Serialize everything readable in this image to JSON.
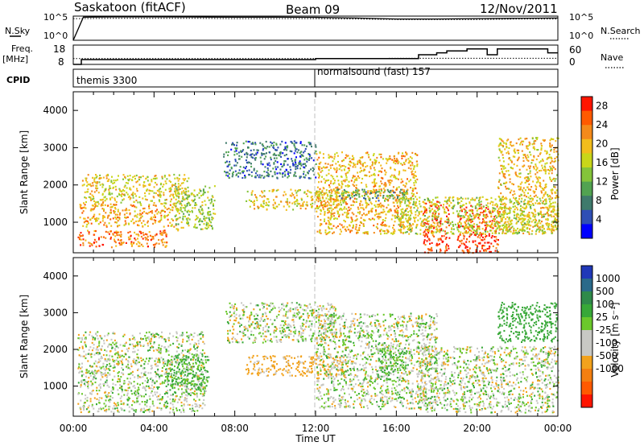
{
  "header": {
    "title": "Saskatoon (fitACF)",
    "beam": "Beam 09",
    "date": "12/Nov/2011"
  },
  "strip_labels": {
    "nsky": "N.Sky",
    "nsearch": "N.Search",
    "freq": "Freq.",
    "mhz": "[MHz]",
    "nave": "Nave",
    "cpid": "CPID",
    "nsky_ticks": [
      "10^5",
      "10^0"
    ],
    "freq_ticks": [
      "18",
      "8"
    ],
    "nave_ticks": [
      "60",
      "0"
    ]
  },
  "cpid": {
    "first": "themis 3300",
    "second": "normalsound (fast) 157"
  },
  "chart_data": [
    {
      "type": "line",
      "title": "N.Sky / N.Search",
      "y_scale": "log",
      "ylim": [
        1,
        100000
      ],
      "series": [
        {
          "name": "N.Sky",
          "style": "solid",
          "x": [
            0,
            0.5,
            2,
            4,
            6,
            8,
            10,
            12,
            14,
            16,
            18,
            20,
            22,
            24
          ],
          "y": [
            1,
            60000,
            70000,
            70000,
            65000,
            60000,
            60000,
            55000,
            40000,
            25000,
            25000,
            30000,
            35000,
            40000
          ]
        },
        {
          "name": "N.Search",
          "style": "dotted",
          "x": [
            0,
            2,
            4,
            6,
            8,
            10,
            12,
            14,
            16,
            18,
            20,
            22,
            24
          ],
          "y": [
            30000,
            35000,
            35000,
            35000,
            30000,
            30000,
            30000,
            25000,
            20000,
            20000,
            20000,
            25000,
            25000
          ]
        }
      ]
    },
    {
      "type": "line",
      "title": "Freq. / Nave",
      "series": [
        {
          "name": "Freq. [MHz]",
          "style": "solid",
          "axis": "left",
          "ylim": [
            8,
            18
          ],
          "x": [
            0,
            0.4,
            12,
            16.5,
            17.1,
            18,
            18.5,
            19.5,
            20.5,
            21,
            23.5,
            24
          ],
          "y": [
            8,
            10.5,
            11,
            11,
            13,
            14,
            15,
            16,
            13,
            16,
            14,
            14
          ]
        },
        {
          "name": "Nave",
          "style": "dotted",
          "axis": "right",
          "ylim": [
            0,
            60
          ],
          "x": [
            0,
            12,
            16,
            20,
            24
          ],
          "y": [
            18,
            18,
            19,
            19,
            19
          ]
        }
      ]
    },
    {
      "type": "heatmap",
      "title": "Power",
      "xlabel": "Time UT",
      "ylabel": "Slant Range [km]",
      "xlim": [
        0,
        24
      ],
      "ylim": [
        180,
        4500
      ],
      "x_ticks": [
        "00:00",
        "04:00",
        "08:00",
        "12:00",
        "16:00",
        "20:00",
        "00:00"
      ],
      "y_ticks": [
        1000,
        2000,
        3000,
        4000
      ],
      "colorbar": {
        "label": "Power [dB]",
        "ticks": [
          "4",
          "8",
          "12",
          "16",
          "20",
          "24",
          "28"
        ],
        "colors": [
          "#0000ff",
          "#2f4fb5",
          "#3f7a6c",
          "#52a351",
          "#84c43a",
          "#c9d61a",
          "#f2bd1c",
          "#f48a1a",
          "#ff5a00",
          "#ff1500"
        ]
      },
      "regions": [
        {
          "t": [
            0.2,
            4.6
          ],
          "r": [
            350,
            800
          ],
          "value": 24
        },
        {
          "t": [
            0.3,
            5.2
          ],
          "r": [
            900,
            1500
          ],
          "value": 21
        },
        {
          "t": [
            0.4,
            5.7
          ],
          "r": [
            1500,
            2300
          ],
          "value": 18
        },
        {
          "t": [
            5.0,
            7.0
          ],
          "r": [
            800,
            2000
          ],
          "value": 15
        },
        {
          "t": [
            7.4,
            12.0
          ],
          "r": [
            2200,
            3200
          ],
          "value": 7
        },
        {
          "t": [
            8.5,
            13.5
          ],
          "r": [
            1350,
            1900
          ],
          "value": 18
        },
        {
          "t": [
            12.0,
            17.0
          ],
          "r": [
            700,
            2900
          ],
          "value": 20
        },
        {
          "t": [
            13.0,
            16.5
          ],
          "r": [
            1600,
            1900
          ],
          "value": 10
        },
        {
          "t": [
            17.3,
            18.6
          ],
          "r": [
            200,
            1600
          ],
          "value": 27
        },
        {
          "t": [
            19.0,
            21.1
          ],
          "r": [
            200,
            1500
          ],
          "value": 27
        },
        {
          "t": [
            21.0,
            24.0
          ],
          "r": [
            700,
            3300
          ],
          "value": 19
        },
        {
          "t": [
            16.0,
            24.0
          ],
          "r": [
            700,
            1700
          ],
          "value": 16
        }
      ]
    },
    {
      "type": "heatmap",
      "title": "Velocity",
      "xlabel": "Time UT",
      "ylabel": "Slant Range [km]",
      "xlim": [
        0,
        24
      ],
      "ylim": [
        180,
        4500
      ],
      "x_ticks": [
        "00:00",
        "04:00",
        "08:00",
        "12:00",
        "16:00",
        "20:00",
        "00:00"
      ],
      "y_ticks": [
        1000,
        2000,
        3000,
        4000
      ],
      "colorbar": {
        "label": "Velocity [m s⁻¹]",
        "ticks": [
          "1000",
          "500",
          "100",
          "25",
          "-25",
          "-100",
          "-500",
          "-1000"
        ],
        "colors": [
          "#2038b8",
          "#2a6a8a",
          "#2f8a4a",
          "#38a838",
          "#6bc82b",
          "#c8c8c4",
          "#c8c8c4",
          "#f2a21c",
          "#f47f10",
          "#ff5a00",
          "#ff1500"
        ]
      },
      "regions": [
        {
          "t": [
            0.2,
            6.5
          ],
          "r": [
            300,
            2500
          ],
          "value": 0
        },
        {
          "t": [
            4.5,
            6.7
          ],
          "r": [
            800,
            1900
          ],
          "value": 150
        },
        {
          "t": [
            7.5,
            13.0
          ],
          "r": [
            2200,
            3300
          ],
          "value": 0
        },
        {
          "t": [
            8.5,
            13.5
          ],
          "r": [
            1300,
            1850
          ],
          "value": -200
        },
        {
          "t": [
            12.0,
            18.0
          ],
          "r": [
            400,
            3000
          ],
          "value": 0
        },
        {
          "t": [
            15.0,
            16.5
          ],
          "r": [
            1200,
            2200
          ],
          "value": 120
        },
        {
          "t": [
            17.0,
            24.0
          ],
          "r": [
            300,
            2100
          ],
          "value": 0
        },
        {
          "t": [
            21.0,
            24.0
          ],
          "r": [
            2200,
            3300
          ],
          "value": 300
        }
      ]
    }
  ],
  "colors": {
    "noscatter": "#ffffff",
    "axis": "#000000",
    "noon_line": "#c0c0c0"
  }
}
